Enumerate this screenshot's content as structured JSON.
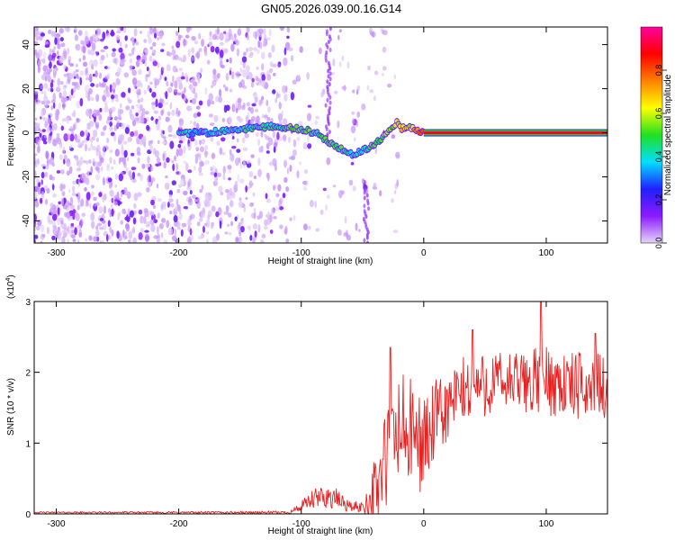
{
  "title": "GN05.2026.039.00.16.G14",
  "chart_data": [
    {
      "type": "heatmap",
      "name": "spectrogram",
      "xlabel": "Height of straight line (km)",
      "ylabel": "Frequency (Hz)",
      "xlim": [
        -318,
        150
      ],
      "ylim": [
        -50,
        48
      ],
      "xticks": [
        -300,
        -200,
        -100,
        0,
        100
      ],
      "yticks": [
        -40,
        -20,
        0,
        20,
        40
      ],
      "colorbar": {
        "label": "Normalized spectral amplitude",
        "range": [
          0,
          1
        ],
        "ticks": [
          0.0,
          0.2,
          0.4,
          0.6,
          0.8
        ],
        "colormap": [
          "#e6d6f7",
          "#8c1aff",
          "#2020ff",
          "#00e0ff",
          "#20e020",
          "#ffff00",
          "#ff8000",
          "#ff0000",
          "#ff00a0"
        ]
      },
      "signal_track": {
        "x": [
          -200,
          -180,
          -160,
          -140,
          -120,
          -105,
          -95,
          -85,
          -75,
          -65,
          -58,
          -50,
          -42,
          -35,
          -28,
          -22,
          -18,
          -12,
          -5,
          0,
          50,
          100,
          150
        ],
        "y": [
          0,
          0,
          1,
          2,
          3,
          2,
          1,
          -1,
          -5,
          -8,
          -10,
          -8,
          -6,
          -3,
          1,
          5,
          2,
          3,
          1,
          0,
          0,
          0,
          0
        ],
        "amplitude": [
          0.35,
          0.38,
          0.4,
          0.42,
          0.45,
          0.5,
          0.48,
          0.45,
          0.5,
          0.45,
          0.4,
          0.42,
          0.5,
          0.5,
          0.55,
          0.6,
          0.65,
          0.6,
          0.75,
          0.9,
          0.92,
          0.92,
          0.92
        ]
      },
      "noise_region_x": [
        -318,
        -110
      ],
      "sparse_noise_x": [
        -110,
        -20
      ]
    },
    {
      "type": "line",
      "name": "snr",
      "xlabel": "Height of straight line (km)",
      "ylabel": "SNR (10 * v/v)",
      "scale_label": "(x10",
      "scale_exp": "4",
      "xlim": [
        -318,
        150
      ],
      "ylim": [
        0,
        3
      ],
      "xticks": [
        -300,
        -200,
        -100,
        0,
        100
      ],
      "yticks": [
        0,
        1,
        2,
        3
      ],
      "color": "#e82020",
      "envelope": {
        "x": [
          -318,
          -110,
          -100,
          -90,
          -80,
          -70,
          -60,
          -50,
          -40,
          -30,
          -20,
          -10,
          0,
          10,
          20,
          30,
          40,
          60,
          80,
          100,
          120,
          150
        ],
        "mean": [
          0.02,
          0.02,
          0.1,
          0.2,
          0.25,
          0.2,
          0.1,
          0.1,
          0.3,
          0.8,
          1.2,
          1.1,
          1.0,
          1.3,
          1.5,
          1.7,
          1.8,
          1.85,
          1.85,
          1.9,
          1.8,
          1.8
        ],
        "spread": [
          0.01,
          0.02,
          0.08,
          0.15,
          0.18,
          0.15,
          0.08,
          0.08,
          0.5,
          0.8,
          0.9,
          0.8,
          0.7,
          0.6,
          0.5,
          0.5,
          0.5,
          0.45,
          0.45,
          0.5,
          0.5,
          0.45
        ]
      },
      "peaks": [
        {
          "x": -27,
          "y": 2.35
        },
        {
          "x": 40,
          "y": 2.6
        },
        {
          "x": 96,
          "y": 3.05
        },
        {
          "x": 140,
          "y": 2.55
        }
      ]
    }
  ]
}
